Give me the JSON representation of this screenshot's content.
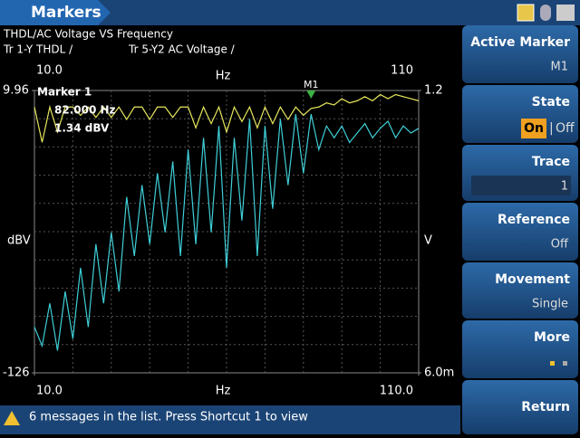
{
  "header": {
    "title": "Markers"
  },
  "chart_data": {
    "type": "line",
    "title": "THDL/AC Voltage VS Frequency",
    "x_label": "Hz",
    "y_label": "dBV",
    "y2_label": "V",
    "x": [
      10,
      12,
      14,
      16,
      18,
      20,
      22,
      24,
      26,
      28,
      30,
      32,
      34,
      36,
      38,
      40,
      42,
      44,
      46,
      48,
      50,
      52,
      54,
      56,
      58,
      60,
      62,
      64,
      66,
      68,
      70,
      72,
      74,
      76,
      78,
      80,
      82,
      84,
      86,
      88,
      90,
      92,
      94,
      96,
      98,
      100,
      102,
      104,
      106,
      108,
      110
    ],
    "xlim": [
      10,
      110
    ],
    "xticks": [
      {
        "value": 10,
        "label": "10.0"
      },
      {
        "value": 110,
        "label": "110.0"
      }
    ],
    "x2ticks": [
      {
        "value": 10,
        "label": "10.0"
      },
      110
    ],
    "ylim": [
      -126,
      9.96
    ],
    "yticks": [
      9.96,
      -126
    ],
    "y2lim": [
      0.006,
      1.2
    ],
    "y2ticks": [
      1.2,
      {
        "value": 0.006,
        "label": "6.0m"
      }
    ],
    "grid": true,
    "divisions": 10,
    "series": [
      {
        "name": "Tr 1-Y THDL /",
        "color": "#e6e65c",
        "values": [
          2,
          -15,
          2,
          -10,
          2,
          2,
          -2,
          2,
          -3,
          2,
          -3,
          2,
          -4,
          2,
          2,
          -4,
          2,
          2,
          -3,
          2,
          2,
          -8,
          2,
          -6,
          2,
          -10,
          2,
          -5,
          2,
          -8,
          2,
          -6,
          2,
          -4,
          2,
          -2,
          1.34,
          2,
          4,
          3,
          6,
          4,
          5,
          7,
          5,
          8,
          6,
          8,
          7,
          6,
          5
        ]
      },
      {
        "name": "Tr 5-Y2 AC Voltage /",
        "color": "#3fcfd8",
        "axis": "y2",
        "values": [
          0.2,
          0.12,
          0.3,
          0.1,
          0.35,
          0.15,
          0.45,
          0.2,
          0.55,
          0.3,
          0.6,
          0.35,
          0.75,
          0.5,
          0.8,
          0.55,
          0.85,
          0.6,
          0.9,
          0.5,
          0.95,
          0.55,
          1.0,
          0.6,
          1.05,
          0.45,
          1.0,
          0.65,
          1.08,
          0.5,
          1.05,
          0.7,
          1.08,
          0.8,
          1.1,
          0.85,
          1.1,
          0.95,
          1.05,
          1.0,
          1.05,
          0.98,
          1.02,
          1.06,
          1.0,
          1.04,
          1.07,
          1.0,
          1.05,
          1.02,
          1.04
        ]
      }
    ],
    "marker": {
      "title": "Marker 1",
      "name": "M1",
      "x": 82,
      "x_text": "82.000 Hz",
      "y_text": "1.34 dBV"
    }
  },
  "menu": [
    {
      "label": "Active Marker",
      "value": "M1"
    },
    {
      "label": "State",
      "options": [
        "On",
        "Off"
      ]
    },
    {
      "label": "Trace",
      "value": "1"
    },
    {
      "label": "Reference",
      "value": "Off"
    },
    {
      "label": "Movement",
      "value": "Single"
    },
    {
      "label": "More"
    },
    {
      "label": "Return"
    }
  ],
  "status": "6 messages in the list. Press Shortcut 1 to view"
}
